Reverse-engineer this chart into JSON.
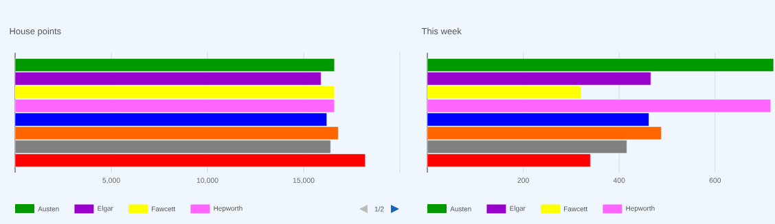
{
  "chart_data": [
    {
      "type": "bar",
      "orientation": "horizontal",
      "title": "House points",
      "categories": [
        null
      ],
      "series": [
        {
          "name": "Austen",
          "color": "#009900",
          "values": [
            16600
          ]
        },
        {
          "name": "Elgar",
          "color": "#9900cc",
          "values": [
            15900
          ]
        },
        {
          "name": "Fawcett",
          "color": "#ffff00",
          "values": [
            16600
          ]
        },
        {
          "name": "Hepworth",
          "color": "#ff66ff",
          "values": [
            16600
          ]
        },
        {
          "color": "#0000ff",
          "values": [
            16200
          ]
        },
        {
          "color": "#ff6600",
          "values": [
            16800
          ]
        },
        {
          "color": "#808080",
          "values": [
            16400
          ]
        },
        {
          "color": "#ff0000",
          "values": [
            18200
          ]
        }
      ],
      "xlim": [
        0,
        20000
      ],
      "xticks": [
        {
          "value": 5000,
          "label": "5,000"
        },
        {
          "value": 10000,
          "label": "10,000"
        },
        {
          "value": 15000,
          "label": "15,000"
        },
        {
          "value": 20000,
          "label": null
        }
      ],
      "grid": "x",
      "legend": "bottom",
      "annotations": [
        "1/2"
      ]
    },
    {
      "type": "bar",
      "orientation": "horizontal",
      "title": "This week",
      "categories": [
        null
      ],
      "series": [
        {
          "name": "Austen",
          "color": "#009900",
          "values": [
            722
          ]
        },
        {
          "name": "Elgar",
          "color": "#9900cc",
          "values": [
            466
          ]
        },
        {
          "name": "Fawcett",
          "color": "#ffff00",
          "values": [
            320
          ]
        },
        {
          "name": "Hepworth",
          "color": "#ff66ff",
          "values": [
            716
          ]
        },
        {
          "color": "#0000ff",
          "values": [
            462
          ]
        },
        {
          "color": "#ff6600",
          "values": [
            488
          ]
        },
        {
          "color": "#808080",
          "values": [
            416
          ]
        },
        {
          "color": "#ff0000",
          "values": [
            340
          ]
        }
      ],
      "xlim": [
        0,
        725
      ],
      "xticks": [
        200,
        400,
        600
      ],
      "grid": "x",
      "legend": "bottom"
    }
  ]
}
